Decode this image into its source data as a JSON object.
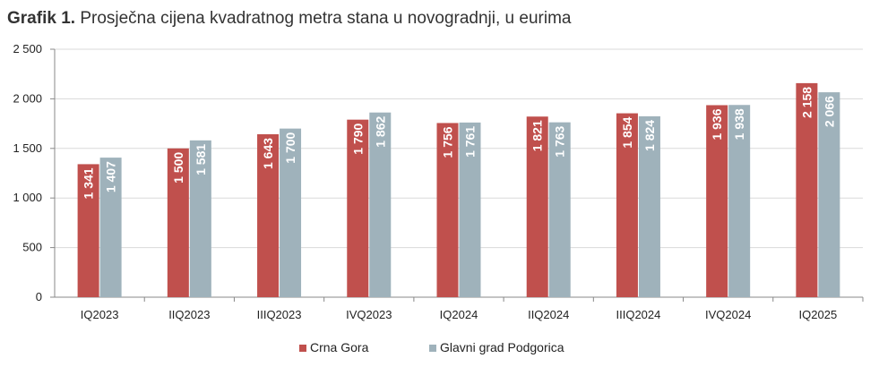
{
  "title": {
    "prefix": "Grafik 1.",
    "text": "Prosječna cijena kvadratnog metra stana u novogradnji, u eurima"
  },
  "chart_data": {
    "type": "bar",
    "categories": [
      "IQ2023",
      "IIQ2023",
      "IIIQ2023",
      "IVQ2023",
      "IQ2024",
      "IIQ2024",
      "IIIQ2024",
      "IVQ2024",
      "IQ2025"
    ],
    "series": [
      {
        "name": "Crna Gora",
        "color": "#c0504d",
        "values": [
          1341,
          1500,
          1643,
          1790,
          1756,
          1821,
          1854,
          1936,
          2158
        ],
        "labels": [
          "1 341",
          "1 500",
          "1 643",
          "1 790",
          "1 756",
          "1 821",
          "1 854",
          "1 936",
          "2 158"
        ]
      },
      {
        "name": "Glavni grad Podgorica",
        "color": "#9fb2bb",
        "values": [
          1407,
          1581,
          1700,
          1862,
          1761,
          1763,
          1824,
          1938,
          2066
        ],
        "labels": [
          "1 407",
          "1 581",
          "1 700",
          "1 862",
          "1 761",
          "1 763",
          "1 824",
          "1 938",
          "2 066"
        ]
      }
    ],
    "ylim": [
      0,
      2500
    ],
    "yticks": [
      0,
      500,
      1000,
      1500,
      2000,
      2500
    ],
    "ytick_labels": [
      "0",
      "500",
      "1 000",
      "1 500",
      "2 000",
      "2 500"
    ],
    "grid": true,
    "legend_position": "bottom"
  }
}
